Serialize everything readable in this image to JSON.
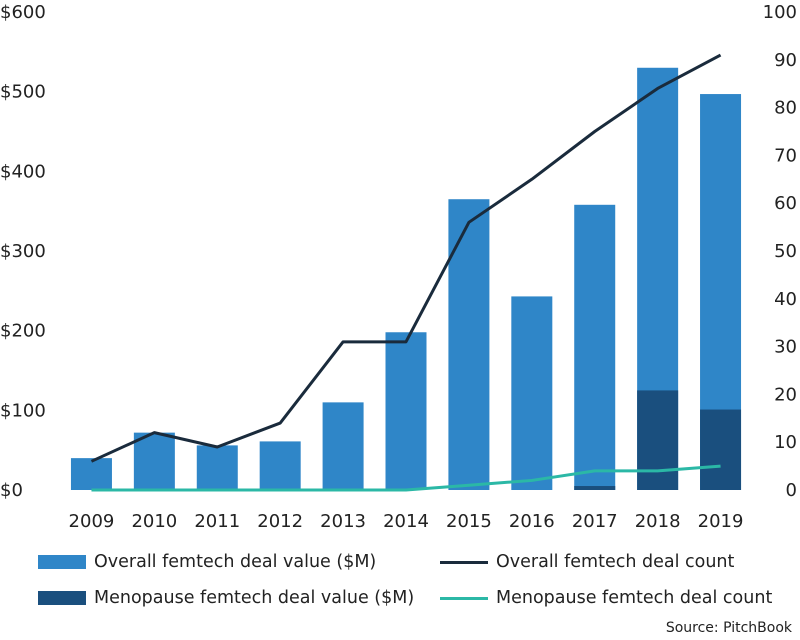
{
  "chart_data": {
    "type": "bar",
    "categories": [
      "2009",
      "2010",
      "2011",
      "2012",
      "2013",
      "2014",
      "2015",
      "2016",
      "2017",
      "2018",
      "2019"
    ],
    "series": [
      {
        "name": "Overall femtech deal value ($M)",
        "kind": "bar",
        "axis": "left",
        "color": "#2f86c8",
        "values": [
          40,
          72,
          56,
          61,
          110,
          198,
          365,
          243,
          358,
          530,
          497
        ]
      },
      {
        "name": "Menopause femtech deal value ($M)",
        "kind": "bar",
        "axis": "left",
        "color": "#1a4f7e",
        "values": [
          0,
          0,
          0,
          0,
          0,
          0,
          0,
          0,
          5,
          125,
          101
        ]
      },
      {
        "name": "Overall femtech deal count",
        "kind": "line",
        "axis": "right",
        "color": "#1a2b3c",
        "values": [
          6,
          12,
          9,
          14,
          31,
          31,
          56,
          65,
          75,
          84,
          91
        ]
      },
      {
        "name": "Menopause femtech deal count",
        "kind": "line",
        "axis": "right",
        "color": "#2bb8a6",
        "values": [
          0,
          0,
          0,
          0,
          0,
          0,
          1,
          2,
          4,
          4,
          5
        ]
      }
    ],
    "y_left": {
      "min": 0,
      "max": 600,
      "ticks": [
        "$0",
        "$100",
        "$200",
        "$300",
        "$400",
        "$500",
        "$600"
      ],
      "tick_values": [
        0,
        100,
        200,
        300,
        400,
        500,
        600
      ]
    },
    "y_right": {
      "min": 0,
      "max": 100,
      "ticks": [
        "0",
        "10",
        "20",
        "30",
        "40",
        "50",
        "60",
        "70",
        "80",
        "90",
        "100"
      ],
      "tick_values": [
        0,
        10,
        20,
        30,
        40,
        50,
        60,
        70,
        80,
        90,
        100
      ]
    },
    "grid": false,
    "legend_position": "bottom",
    "title": "",
    "xlabel": "",
    "ylabel": ""
  },
  "legend": {
    "overall_value": "Overall femtech deal value ($M)",
    "overall_count": "Overall femtech deal count",
    "menopause_value": "Menopause femtech deal value ($M)",
    "menopause_count": "Menopause femtech deal count"
  },
  "source": "Source: PitchBook"
}
